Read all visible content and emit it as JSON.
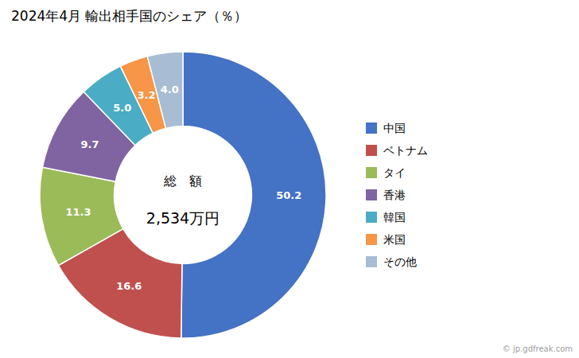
{
  "chart_data": {
    "type": "donut",
    "title": "2024年4月 輸出相手国のシェア（％）",
    "categories": [
      "中国",
      "ベトナム",
      "タイ",
      "香港",
      "韓国",
      "米国",
      "その他"
    ],
    "values": [
      50.2,
      16.6,
      11.3,
      9.7,
      5.0,
      3.2,
      4.0
    ],
    "value_labels": [
      "50.2",
      "16.6",
      "11.3",
      "9.7",
      "5.0",
      "3.2",
      "4.0"
    ],
    "colors": [
      "#4472C4",
      "#C0504D",
      "#9BBB59",
      "#8064A2",
      "#4BACC6",
      "#F79646",
      "#A8BDD4"
    ],
    "data_labels": true,
    "legend": "right",
    "annotations": [
      "総　額",
      "2,534万円",
      "© jp.gdfreak.com"
    ]
  }
}
